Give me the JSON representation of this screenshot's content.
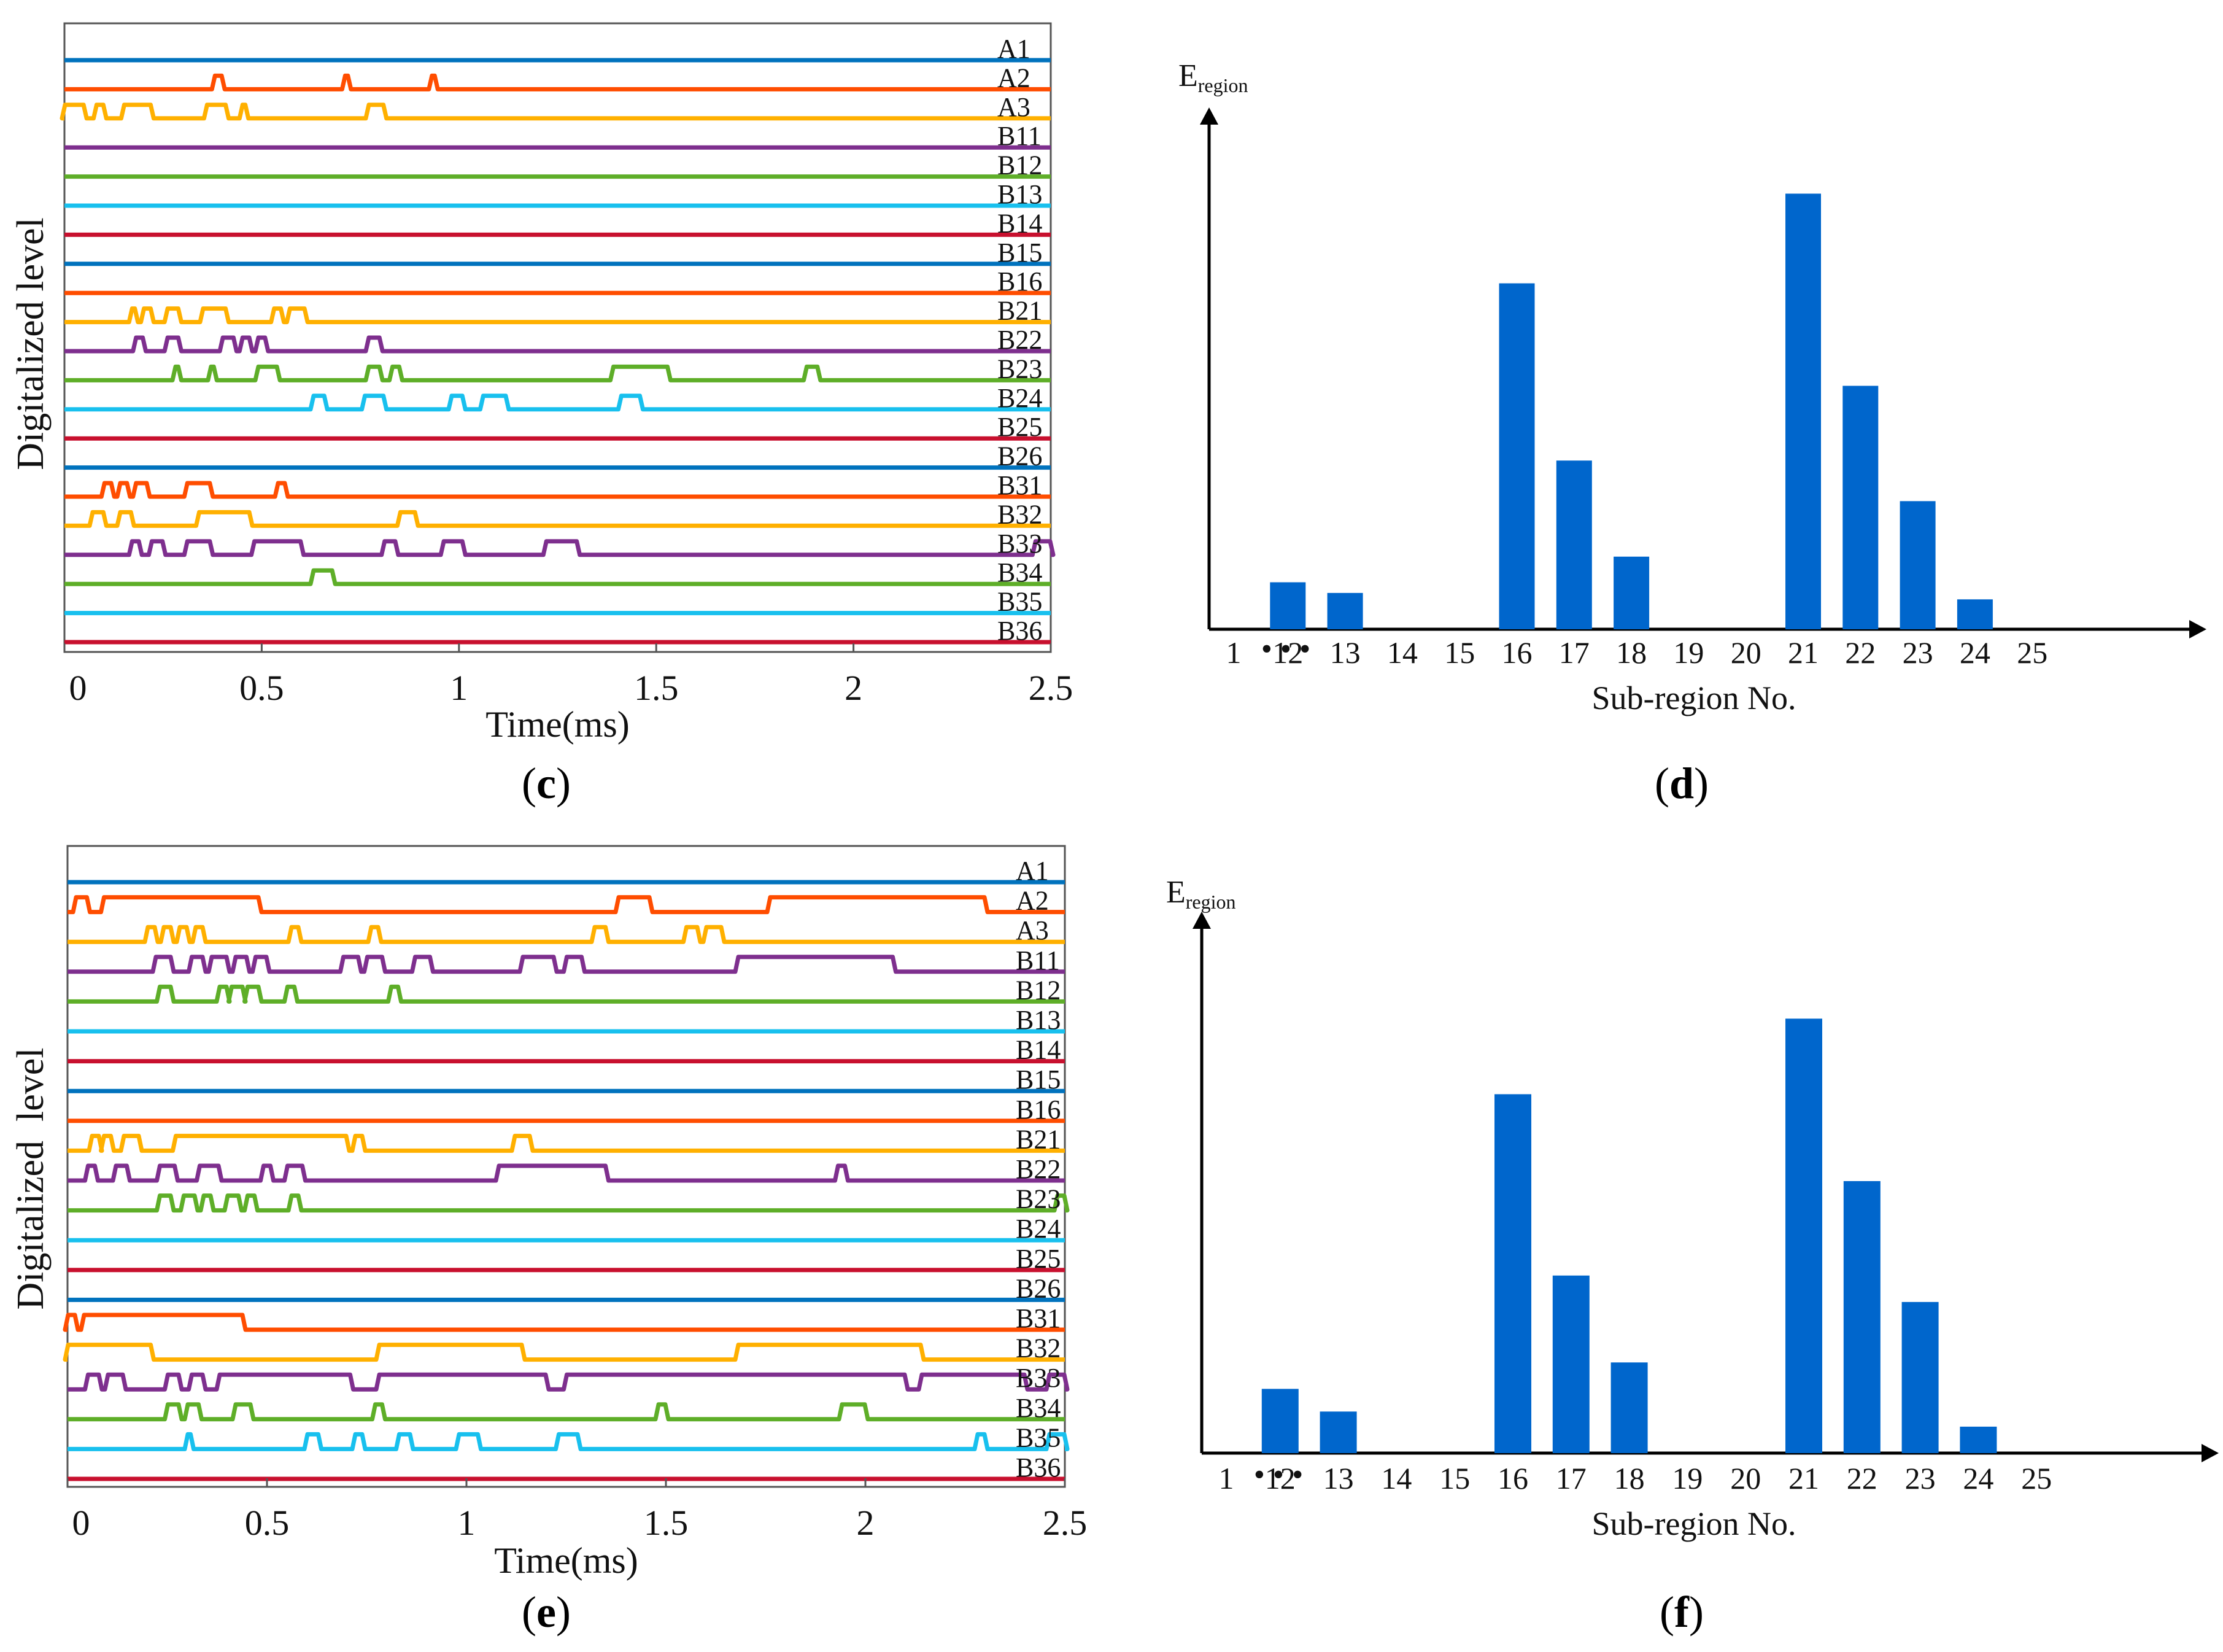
{
  "colors": {
    "blue": "#0072BD",
    "orange": "#FF4D00",
    "yellow": "#FFB000",
    "purple": "#7E2F8E",
    "green": "#5EAE28",
    "cyan": "#18C0EE",
    "red": "#C8102E",
    "bar": "#0066CC"
  },
  "panels": {
    "c": {
      "open": "(",
      "letter": "c",
      "close": ")"
    },
    "d": {
      "open": "(",
      "letter": "d",
      "close": ")"
    },
    "e": {
      "open": "(",
      "letter": "e",
      "close": ")"
    },
    "f": {
      "open": "(",
      "letter": "f",
      "close": ")"
    }
  },
  "chart_data": [
    {
      "id": "c",
      "type": "line",
      "title": "",
      "xlabel": "Time(ms)",
      "ylabel": "Digitalized level",
      "xlim": [
        0,
        2.5
      ],
      "xticks": [
        "0",
        "0.5",
        "1",
        "1.5",
        "2",
        "2.5"
      ],
      "grid": false,
      "series": [
        {
          "name": "A1",
          "color": "blue",
          "pulses": []
        },
        {
          "name": "A2",
          "color": "orange",
          "pulses": [
            [
              0.38,
              0.4
            ],
            [
              0.71,
              0.72
            ],
            [
              0.93,
              0.94
            ]
          ]
        },
        {
          "name": "A3",
          "color": "yellow",
          "pulses": [
            [
              0.0,
              0.05
            ],
            [
              0.08,
              0.1
            ],
            [
              0.15,
              0.22
            ],
            [
              0.36,
              0.41
            ],
            [
              0.45,
              0.46
            ],
            [
              0.77,
              0.81
            ]
          ]
        },
        {
          "name": "B11",
          "color": "purple",
          "pulses": []
        },
        {
          "name": "B12",
          "color": "green",
          "pulses": []
        },
        {
          "name": "B13",
          "color": "cyan",
          "pulses": []
        },
        {
          "name": "B14",
          "color": "red",
          "pulses": []
        },
        {
          "name": "B15",
          "color": "blue",
          "pulses": []
        },
        {
          "name": "B16",
          "color": "orange",
          "pulses": []
        },
        {
          "name": "B21",
          "color": "yellow",
          "pulses": [
            [
              0.17,
              0.18
            ],
            [
              0.2,
              0.22
            ],
            [
              0.26,
              0.29
            ],
            [
              0.35,
              0.41
            ],
            [
              0.53,
              0.55
            ],
            [
              0.57,
              0.61
            ]
          ]
        },
        {
          "name": "B22",
          "color": "purple",
          "pulses": [
            [
              0.18,
              0.2
            ],
            [
              0.26,
              0.29
            ],
            [
              0.4,
              0.43
            ],
            [
              0.45,
              0.47
            ],
            [
              0.49,
              0.51
            ],
            [
              0.77,
              0.8
            ]
          ]
        },
        {
          "name": "B23",
          "color": "green",
          "pulses": [
            [
              0.28,
              0.29
            ],
            [
              0.37,
              0.38
            ],
            [
              0.49,
              0.54
            ],
            [
              0.77,
              0.8
            ],
            [
              0.83,
              0.85
            ],
            [
              1.39,
              1.53
            ],
            [
              1.88,
              1.91
            ]
          ]
        },
        {
          "name": "B24",
          "color": "cyan",
          "pulses": [
            [
              0.63,
              0.66
            ],
            [
              0.76,
              0.81
            ],
            [
              0.98,
              1.01
            ],
            [
              1.06,
              1.12
            ],
            [
              1.41,
              1.46
            ]
          ]
        },
        {
          "name": "B25",
          "color": "red",
          "pulses": []
        },
        {
          "name": "B26",
          "color": "blue",
          "pulses": []
        },
        {
          "name": "B31",
          "color": "orange",
          "pulses": [
            [
              0.1,
              0.12
            ],
            [
              0.14,
              0.16
            ],
            [
              0.18,
              0.21
            ],
            [
              0.31,
              0.37
            ],
            [
              0.54,
              0.56
            ]
          ]
        },
        {
          "name": "B32",
          "color": "yellow",
          "pulses": [
            [
              0.07,
              0.1
            ],
            [
              0.14,
              0.17
            ],
            [
              0.34,
              0.47
            ],
            [
              0.85,
              0.89
            ]
          ]
        },
        {
          "name": "B33",
          "color": "purple",
          "pulses": [
            [
              0.17,
              0.19
            ],
            [
              0.22,
              0.25
            ],
            [
              0.31,
              0.37
            ],
            [
              0.48,
              0.6
            ],
            [
              0.81,
              0.84
            ],
            [
              0.96,
              1.01
            ],
            [
              1.22,
              1.3
            ],
            [
              2.46,
              2.5
            ]
          ]
        },
        {
          "name": "B34",
          "color": "green",
          "pulses": [
            [
              0.63,
              0.68
            ]
          ]
        },
        {
          "name": "B35",
          "color": "cyan",
          "pulses": []
        },
        {
          "name": "B36",
          "color": "red",
          "pulses": []
        }
      ]
    },
    {
      "id": "d",
      "type": "bar",
      "title": "",
      "ylabel_main": "E",
      "ylabel_sub": "region",
      "xlabel": "Sub-region No.",
      "tick_first": "1",
      "ellipsis": "• • •",
      "categories": [
        "12",
        "13",
        "14",
        "15",
        "16",
        "17",
        "18",
        "19",
        "20",
        "21",
        "22",
        "23",
        "24",
        "25"
      ],
      "values": [
        11,
        8.5,
        0,
        0,
        81,
        39.5,
        17,
        0,
        0,
        102,
        57,
        30,
        7,
        0
      ],
      "ylim": [
        0,
        115
      ]
    },
    {
      "id": "e",
      "type": "line",
      "title": "",
      "xlabel": "Time(ms)",
      "ylabel": "Digitalized  level",
      "xlim": [
        0,
        2.5
      ],
      "xticks": [
        "0",
        "0.5",
        "1",
        "1.5",
        "2",
        "2.5"
      ],
      "grid": false,
      "series": [
        {
          "name": "A1",
          "color": "blue",
          "pulses": []
        },
        {
          "name": "A2",
          "color": "orange",
          "pulses": [
            [
              0.02,
              0.05
            ],
            [
              0.09,
              0.48
            ],
            [
              1.38,
              1.46
            ],
            [
              1.76,
              2.3
            ]
          ]
        },
        {
          "name": "A3",
          "color": "yellow",
          "pulses": [
            [
              0.2,
              0.22
            ],
            [
              0.24,
              0.26
            ],
            [
              0.28,
              0.3
            ],
            [
              0.32,
              0.34
            ],
            [
              0.56,
              0.58
            ],
            [
              0.76,
              0.78
            ],
            [
              1.32,
              1.35
            ],
            [
              1.55,
              1.58
            ],
            [
              1.6,
              1.64
            ]
          ]
        },
        {
          "name": "B11",
          "color": "purple",
          "pulses": [
            [
              0.22,
              0.26
            ],
            [
              0.31,
              0.34
            ],
            [
              0.36,
              0.4
            ],
            [
              0.42,
              0.45
            ],
            [
              0.47,
              0.5
            ],
            [
              0.69,
              0.73
            ],
            [
              0.75,
              0.79
            ],
            [
              0.87,
              0.91
            ],
            [
              1.14,
              1.22
            ],
            [
              1.25,
              1.29
            ],
            [
              1.68,
              2.07
            ]
          ]
        },
        {
          "name": "B12",
          "color": "green",
          "pulses": [
            [
              0.23,
              0.26
            ],
            [
              0.38,
              0.4
            ],
            [
              0.41,
              0.44
            ],
            [
              0.45,
              0.48
            ],
            [
              0.55,
              0.57
            ],
            [
              0.81,
              0.83
            ]
          ]
        },
        {
          "name": "B13",
          "color": "cyan",
          "pulses": []
        },
        {
          "name": "B14",
          "color": "red",
          "pulses": []
        },
        {
          "name": "B15",
          "color": "blue",
          "pulses": []
        },
        {
          "name": "B16",
          "color": "orange",
          "pulses": []
        },
        {
          "name": "B21",
          "color": "yellow",
          "pulses": [
            [
              0.06,
              0.08
            ],
            [
              0.09,
              0.11
            ],
            [
              0.14,
              0.18
            ],
            [
              0.27,
              0.7
            ],
            [
              0.72,
              0.74
            ],
            [
              1.12,
              1.16
            ]
          ]
        },
        {
          "name": "B22",
          "color": "purple",
          "pulses": [
            [
              0.05,
              0.07
            ],
            [
              0.12,
              0.15
            ],
            [
              0.23,
              0.27
            ],
            [
              0.33,
              0.38
            ],
            [
              0.49,
              0.51
            ],
            [
              0.55,
              0.59
            ],
            [
              1.08,
              1.35
            ],
            [
              1.93,
              1.95
            ]
          ]
        },
        {
          "name": "B23",
          "color": "green",
          "pulses": [
            [
              0.23,
              0.26
            ],
            [
              0.29,
              0.32
            ],
            [
              0.34,
              0.36
            ],
            [
              0.4,
              0.43
            ],
            [
              0.45,
              0.47
            ],
            [
              0.56,
              0.58
            ],
            [
              2.48,
              2.5
            ]
          ]
        },
        {
          "name": "B24",
          "color": "cyan",
          "pulses": []
        },
        {
          "name": "B25",
          "color": "red",
          "pulses": []
        },
        {
          "name": "B26",
          "color": "blue",
          "pulses": []
        },
        {
          "name": "B31",
          "color": "orange",
          "pulses": [
            [
              0.0,
              0.02
            ],
            [
              0.04,
              0.44
            ]
          ]
        },
        {
          "name": "B32",
          "color": "yellow",
          "pulses": [
            [
              0.0,
              0.21
            ],
            [
              0.78,
              1.14
            ],
            [
              1.68,
              2.14
            ]
          ]
        },
        {
          "name": "B33",
          "color": "purple",
          "pulses": [
            [
              0.05,
              0.08
            ],
            [
              0.1,
              0.14
            ],
            [
              0.25,
              0.28
            ],
            [
              0.31,
              0.34
            ],
            [
              0.38,
              0.71
            ],
            [
              0.78,
              1.2
            ],
            [
              1.25,
              2.1
            ],
            [
              2.14,
              2.4
            ],
            [
              2.46,
              2.5
            ]
          ]
        },
        {
          "name": "B34",
          "color": "green",
          "pulses": [
            [
              0.25,
              0.28
            ],
            [
              0.3,
              0.33
            ],
            [
              0.42,
              0.46
            ],
            [
              0.77,
              0.79
            ],
            [
              1.48,
              1.5
            ],
            [
              1.94,
              2.0
            ]
          ]
        },
        {
          "name": "B35",
          "color": "cyan",
          "pulses": [
            [
              0.3,
              0.31
            ],
            [
              0.6,
              0.63
            ],
            [
              0.72,
              0.74
            ],
            [
              0.83,
              0.86
            ],
            [
              0.98,
              1.03
            ],
            [
              1.23,
              1.28
            ],
            [
              2.28,
              2.3
            ],
            [
              2.46,
              2.5
            ]
          ]
        },
        {
          "name": "B36",
          "color": "red",
          "pulses": []
        }
      ]
    },
    {
      "id": "f",
      "type": "bar",
      "title": "",
      "ylabel_main": "E",
      "ylabel_sub": "region",
      "xlabel": "Sub-region No.",
      "tick_first": "1",
      "ellipsis": "• • •",
      "categories": [
        "12",
        "13",
        "14",
        "15",
        "16",
        "17",
        "18",
        "19",
        "20",
        "21",
        "22",
        "23",
        "24",
        "25"
      ],
      "values": [
        17,
        11,
        0,
        0,
        95,
        47,
        24,
        0,
        0,
        115,
        72,
        40,
        7,
        0
      ],
      "ylim": [
        0,
        130
      ]
    }
  ]
}
